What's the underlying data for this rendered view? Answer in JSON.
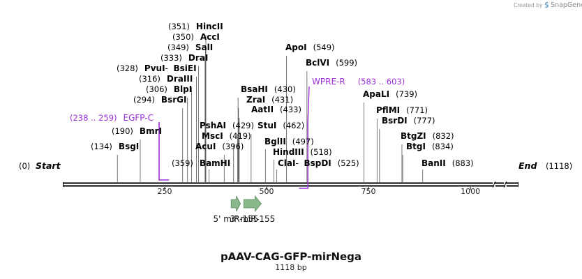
{
  "creator": {
    "prefix": "Created by",
    "brand": "SnapGene"
  },
  "map": {
    "name": "pAAV-CAG-GFP-mirNega",
    "length_label": "1118 bp",
    "length": 1118,
    "start_label": "Start",
    "end_label": "End",
    "start_pos": "(0)",
    "end_pos": "(1118)",
    "ticks": [
      {
        "value": 250,
        "label": "250"
      },
      {
        "value": 500,
        "label": "500"
      },
      {
        "value": 750,
        "label": "750"
      },
      {
        "value": 1000,
        "label": "1000"
      }
    ],
    "sites": [
      {
        "id": "bsgi",
        "name": "BsgI",
        "pos": "(134)",
        "bp": 134
      },
      {
        "id": "bmri",
        "name": "BmrI",
        "pos": "(190)",
        "bp": 190
      },
      {
        "id": "bsrgi",
        "name": "BsrGI",
        "pos": "(294)",
        "bp": 294
      },
      {
        "id": "blpi",
        "name": "BlpI",
        "pos": "(306)",
        "bp": 306
      },
      {
        "id": "draiii",
        "name": "DraIII",
        "pos": "(316)",
        "bp": 316
      },
      {
        "id": "pvui-bsiei",
        "name": "PvuI",
        "name2": "BsiEI",
        "pos": "(328)",
        "bp": 328
      },
      {
        "id": "drai",
        "name": "DraI",
        "pos": "(333)",
        "bp": 333
      },
      {
        "id": "sali",
        "name": "SalI",
        "pos": "(349)",
        "bp": 349
      },
      {
        "id": "acci",
        "name": "AccI",
        "pos": "(350)",
        "bp": 350
      },
      {
        "id": "hincii",
        "name": "HincII",
        "pos": "(351)",
        "bp": 351
      },
      {
        "id": "bamhi",
        "name": "BamHI",
        "pos": "(359)",
        "bp": 359
      },
      {
        "id": "acui",
        "name": "AcuI",
        "pos": "(396)",
        "bp": 396
      },
      {
        "id": "msci",
        "name": "MscI",
        "pos": "(419)",
        "bp": 419
      },
      {
        "id": "pshai",
        "name": "PshAI",
        "pos": "(429)",
        "bp": 429
      },
      {
        "id": "bsahi",
        "name": "BsaHI",
        "pos": "(430)",
        "bp": 430
      },
      {
        "id": "zrai",
        "name": "ZraI",
        "pos": "(431)",
        "bp": 431
      },
      {
        "id": "aatii",
        "name": "AatII",
        "pos": "(433)",
        "bp": 433
      },
      {
        "id": "stui",
        "name": "StuI",
        "pos": "(462)",
        "bp": 462
      },
      {
        "id": "bglii",
        "name": "BglII",
        "pos": "(497)",
        "bp": 497
      },
      {
        "id": "hindiii",
        "name": "HindIII",
        "pos": "(518)",
        "bp": 518
      },
      {
        "id": "clai-bspdi",
        "name": "ClaI",
        "name2": "BspDI",
        "pos": "(525)",
        "bp": 525
      },
      {
        "id": "apoi",
        "name": "ApoI",
        "pos": "(549)",
        "bp": 549
      },
      {
        "id": "bclvi",
        "name": "BclVI",
        "pos": "(599)",
        "bp": 599
      },
      {
        "id": "apali",
        "name": "ApaLI",
        "pos": "(739)",
        "bp": 739
      },
      {
        "id": "pflmi",
        "name": "PflMI",
        "pos": "(771)",
        "bp": 771
      },
      {
        "id": "bsrdi",
        "name": "BsrDI",
        "pos": "(777)",
        "bp": 777
      },
      {
        "id": "btgzi",
        "name": "BtgZI",
        "pos": "(832)",
        "bp": 832
      },
      {
        "id": "btgi",
        "name": "BtgI",
        "pos": "(834)",
        "bp": 834
      },
      {
        "id": "banii",
        "name": "BanII",
        "pos": "(883)",
        "bp": 883
      }
    ],
    "primers": [
      {
        "id": "egfp-c",
        "name": "EGFP-C",
        "range": "(238 .. 259)",
        "start": 238,
        "end": 259,
        "color": "#9b30d9"
      },
      {
        "id": "wpre-r",
        "name": "WPRE-R",
        "range": "(583 .. 603)",
        "start": 583,
        "end": 603,
        "color": "#9b30d9"
      }
    ],
    "features": [
      {
        "id": "mir155-5",
        "name": "5' miR-155",
        "start": 413,
        "end": 436,
        "color": "#88b78a"
      },
      {
        "id": "mir155-3",
        "name": "3' miR-155",
        "start": 444,
        "end": 487,
        "color": "#88b78a"
      }
    ]
  }
}
